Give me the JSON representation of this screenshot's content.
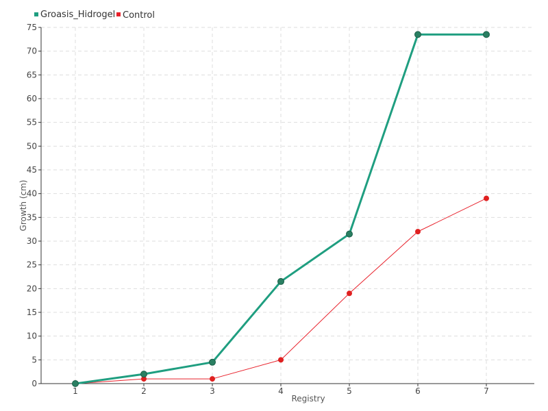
{
  "chart_data": {
    "type": "line",
    "title": "",
    "xlabel": "Registry",
    "ylabel": "Growth (cm)",
    "x": [
      1,
      2,
      3,
      4,
      5,
      6,
      7
    ],
    "xticks": [
      "1",
      "2",
      "3",
      "4",
      "5",
      "6",
      "7"
    ],
    "ylim": [
      0,
      75
    ],
    "yticks": [
      0,
      5,
      10,
      15,
      20,
      25,
      30,
      35,
      40,
      45,
      50,
      55,
      60,
      65,
      70,
      75
    ],
    "grid": true,
    "legend_position": "top-left",
    "series": [
      {
        "name": "Groasis_Hidrogel",
        "color": "#1f9e80",
        "marker_color": "#2a7f62",
        "values": [
          0,
          2,
          4.5,
          21.5,
          31.5,
          73.5,
          73.5
        ]
      },
      {
        "name": "Control",
        "color": "#e8202a",
        "marker_color": "#e02020",
        "values": [
          0,
          1,
          1,
          5,
          19,
          32,
          39
        ]
      }
    ]
  }
}
